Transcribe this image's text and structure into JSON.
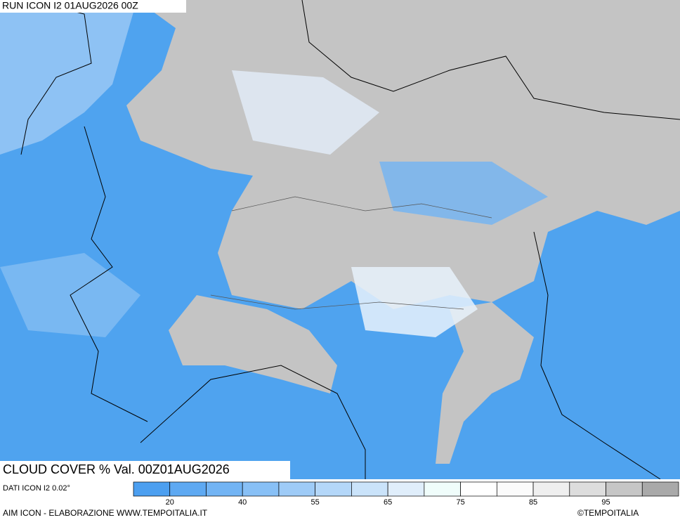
{
  "header": {
    "run": "RUN ICON I2 01AUG2026 00Z",
    "title": "CLOUD COVER % Val. 00Z01AUG2026",
    "source": "DATI ICON I2 0.02°"
  },
  "legend": {
    "colors": [
      "#4c9ff0",
      "#5ea9f2",
      "#72b4f4",
      "#88c0f6",
      "#9ecbf7",
      "#b4d7f9",
      "#cae3fa",
      "#e0eefb",
      "#f0fdfb",
      "#ffffff",
      "#fbfbfb",
      "#efefef",
      "#dddddd",
      "#c6c6c6",
      "#a9a9a9"
    ],
    "labels": [
      20,
      40,
      55,
      65,
      75,
      85,
      95
    ]
  },
  "footer": {
    "left": "AIM ICON - ELABORAZIONE WWW.TEMPOITALIA.IT",
    "right": "©TEMPOITALIA"
  }
}
